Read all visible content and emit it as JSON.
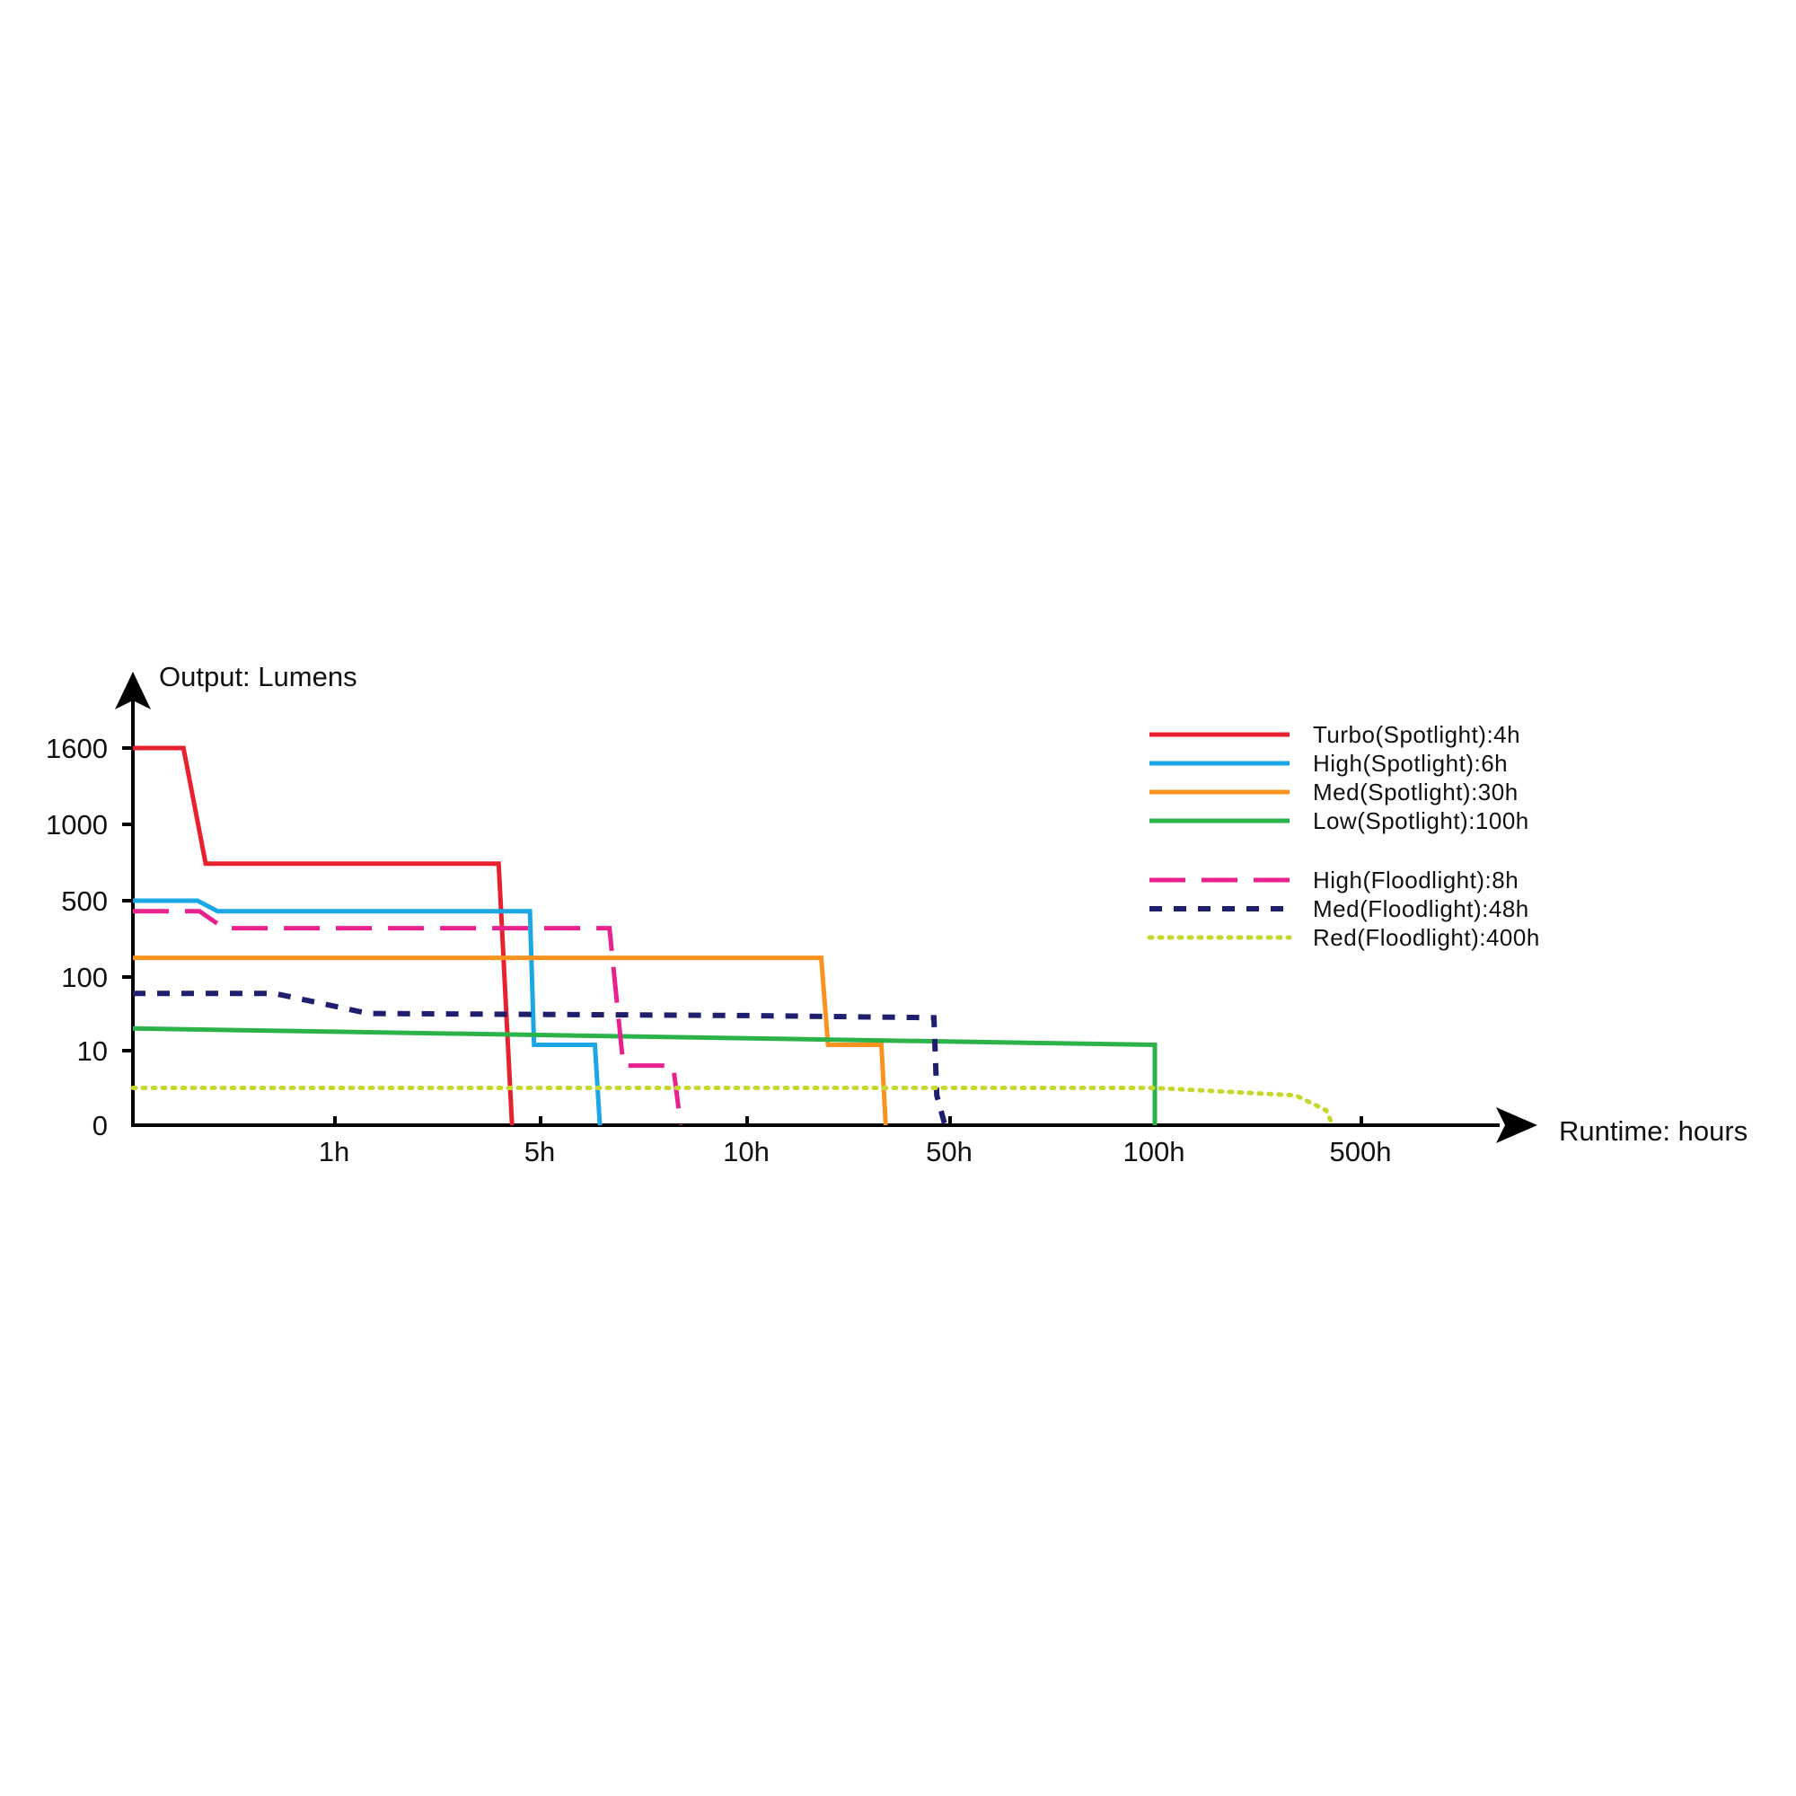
{
  "chart_data": {
    "type": "line",
    "title": "",
    "ylabel": "Output: Lumens",
    "xlabel": "Runtime: hours",
    "y_ticks": [
      {
        "value": 0,
        "label": "0"
      },
      {
        "value": 10,
        "label": "10"
      },
      {
        "value": 100,
        "label": "100"
      },
      {
        "value": 500,
        "label": "500"
      },
      {
        "value": 1000,
        "label": "1000"
      },
      {
        "value": 1600,
        "label": "1600"
      }
    ],
    "x_ticks": [
      {
        "value": 1,
        "label": "1h"
      },
      {
        "value": 5,
        "label": "5h"
      },
      {
        "value": 10,
        "label": "10h"
      },
      {
        "value": 50,
        "label": "50h"
      },
      {
        "value": 100,
        "label": "100h"
      },
      {
        "value": 500,
        "label": "500h"
      }
    ],
    "grid": false,
    "legend_position": "top-right",
    "series": [
      {
        "name": "Turbo(Spotlight):4h",
        "color": "#e8212e",
        "style": "solid",
        "points": [
          [
            0,
            1600
          ],
          [
            0.25,
            1600
          ],
          [
            0.36,
            700
          ],
          [
            3.6,
            700
          ],
          [
            4.0,
            0
          ]
        ]
      },
      {
        "name": "High(Spotlight):6h",
        "color": "#1ba6e6",
        "style": "solid",
        "points": [
          [
            0,
            500
          ],
          [
            0.32,
            500
          ],
          [
            0.42,
            400
          ],
          [
            4.6,
            400
          ],
          [
            4.75,
            12
          ],
          [
            6.0,
            12
          ],
          [
            6.1,
            0
          ]
        ]
      },
      {
        "name": "Med(Spotlight):30h",
        "color": "#f7931e",
        "style": "solid",
        "points": [
          [
            0,
            150
          ],
          [
            18,
            150
          ],
          [
            19,
            12
          ],
          [
            29,
            12
          ],
          [
            30,
            0
          ]
        ]
      },
      {
        "name": "Low(Spotlight):100h",
        "color": "#2bb34a",
        "style": "solid",
        "points": [
          [
            0,
            20
          ],
          [
            100,
            12
          ],
          [
            100,
            0
          ]
        ]
      },
      {
        "name": "High(Floodlight):8h",
        "color": "#e8218f",
        "style": "dashed",
        "points": [
          [
            0,
            400
          ],
          [
            0.33,
            400
          ],
          [
            0.45,
            280
          ],
          [
            6.3,
            280
          ],
          [
            6.6,
            8
          ],
          [
            7.8,
            8
          ],
          [
            8.0,
            0
          ]
        ]
      },
      {
        "name": "Med(Floodlight):48h",
        "color": "#1f1f6e",
        "style": "dotted-dash",
        "points": [
          [
            0,
            60
          ],
          [
            0.7,
            60
          ],
          [
            1.3,
            32
          ],
          [
            10,
            30
          ],
          [
            44,
            28
          ],
          [
            45,
            4
          ],
          [
            48,
            0
          ]
        ]
      },
      {
        "name": "Red(Floodlight):400h",
        "color": "#c6d82c",
        "style": "dotted",
        "points": [
          [
            0,
            5
          ],
          [
            100,
            5
          ],
          [
            300,
            4
          ],
          [
            380,
            2
          ],
          [
            400,
            0
          ]
        ]
      }
    ]
  }
}
